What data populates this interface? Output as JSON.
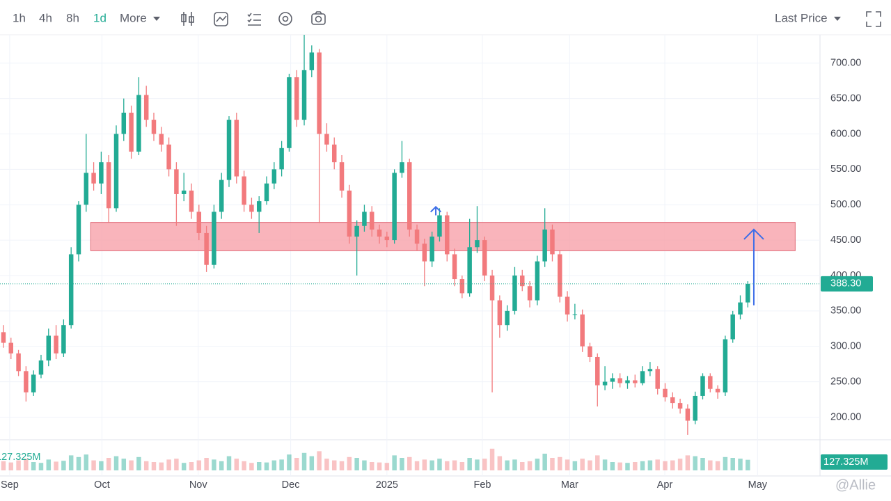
{
  "toolbar": {
    "intervals": [
      "1h",
      "4h",
      "8h",
      "1d"
    ],
    "active": 3,
    "more": "More",
    "price_mode": "Last Price"
  },
  "watermark": "@Allie",
  "chart_data": {
    "type": "candlestick",
    "up_color": "#22ab94",
    "down_color": "#f27a7d",
    "ylim": [
      170,
      740
    ],
    "yticks": [
      {
        "value": 200,
        "label": "200.00"
      },
      {
        "value": 250,
        "label": "250.00"
      },
      {
        "value": 300,
        "label": "300.00"
      },
      {
        "value": 350,
        "label": "350.00"
      },
      {
        "value": 400,
        "label": "400.00"
      },
      {
        "value": 450,
        "label": "450.00"
      },
      {
        "value": 500,
        "label": "500.00"
      },
      {
        "value": 550,
        "label": "550.00"
      },
      {
        "value": 600,
        "label": "600.00"
      },
      {
        "value": 650,
        "label": "650.00"
      },
      {
        "value": 700,
        "label": "700.00"
      }
    ],
    "xlim": [
      -0.46,
      108.6
    ],
    "xticks": [
      {
        "value": 0.83,
        "label": "Sep"
      },
      {
        "value": 13.1,
        "label": "Oct"
      },
      {
        "value": 25.9,
        "label": "Nov"
      },
      {
        "value": 38.2,
        "label": "Dec"
      },
      {
        "value": 51.0,
        "label": "2025"
      },
      {
        "value": 63.7,
        "label": "Feb"
      },
      {
        "value": 75.3,
        "label": "Mar"
      },
      {
        "value": 87.96,
        "label": "Apr"
      },
      {
        "value": 100.3,
        "label": "May"
      }
    ],
    "grid": true,
    "ohlc": [
      [
        320,
        330,
        298,
        305
      ],
      [
        305,
        312,
        282,
        290
      ],
      [
        290,
        295,
        258,
        265
      ],
      [
        265,
        272,
        222,
        235
      ],
      [
        235,
        266,
        230,
        260
      ],
      [
        260,
        288,
        255,
        280
      ],
      [
        280,
        325,
        272,
        315
      ],
      [
        315,
        330,
        282,
        290
      ],
      [
        290,
        338,
        285,
        330
      ],
      [
        330,
        440,
        325,
        430
      ],
      [
        430,
        505,
        420,
        500
      ],
      [
        500,
        600,
        490,
        545
      ],
      [
        545,
        560,
        520,
        530
      ],
      [
        530,
        575,
        515,
        560
      ],
      [
        560,
        570,
        475,
        495
      ],
      [
        495,
        612,
        490,
        600
      ],
      [
        600,
        650,
        590,
        630
      ],
      [
        630,
        640,
        565,
        575
      ],
      [
        575,
        680,
        570,
        655
      ],
      [
        655,
        668,
        610,
        620
      ],
      [
        620,
        630,
        590,
        600
      ],
      [
        600,
        610,
        575,
        585
      ],
      [
        585,
        595,
        540,
        550
      ],
      [
        550,
        560,
        470,
        515
      ],
      [
        515,
        545,
        505,
        520
      ],
      [
        520,
        530,
        480,
        490
      ],
      [
        490,
        500,
        450,
        460
      ],
      [
        460,
        470,
        405,
        415
      ],
      [
        415,
        500,
        410,
        490
      ],
      [
        490,
        545,
        480,
        535
      ],
      [
        535,
        625,
        525,
        620
      ],
      [
        620,
        630,
        530,
        540
      ],
      [
        540,
        548,
        490,
        500
      ],
      [
        500,
        510,
        480,
        490
      ],
      [
        490,
        512,
        460,
        505
      ],
      [
        505,
        540,
        500,
        530
      ],
      [
        530,
        560,
        522,
        550
      ],
      [
        550,
        590,
        540,
        580
      ],
      [
        580,
        685,
        575,
        680
      ],
      [
        680,
        690,
        610,
        620
      ],
      [
        620,
        740,
        612,
        690
      ],
      [
        690,
        725,
        680,
        715
      ],
      [
        715,
        720,
        474,
        600
      ],
      [
        600,
        615,
        575,
        585
      ],
      [
        585,
        595,
        550,
        560
      ],
      [
        560,
        570,
        510,
        520
      ],
      [
        520,
        528,
        445,
        455
      ],
      [
        455,
        478,
        400,
        470
      ],
      [
        470,
        500,
        462,
        490
      ],
      [
        490,
        498,
        455,
        465
      ],
      [
        465,
        472,
        445,
        455
      ],
      [
        455,
        462,
        440,
        450
      ],
      [
        450,
        550,
        445,
        545
      ],
      [
        545,
        590,
        538,
        560
      ],
      [
        560,
        565,
        455,
        465
      ],
      [
        465,
        472,
        435,
        445
      ],
      [
        445,
        452,
        385,
        420
      ],
      [
        420,
        462,
        412,
        455
      ],
      [
        455,
        495,
        448,
        485
      ],
      [
        485,
        490,
        420,
        430
      ],
      [
        430,
        438,
        385,
        395
      ],
      [
        395,
        400,
        368,
        375
      ],
      [
        375,
        480,
        370,
        440
      ],
      [
        440,
        498,
        432,
        450
      ],
      [
        450,
        455,
        392,
        400
      ],
      [
        400,
        408,
        235,
        365
      ],
      [
        365,
        372,
        312,
        330
      ],
      [
        330,
        358,
        322,
        350
      ],
      [
        350,
        412,
        345,
        400
      ],
      [
        400,
        408,
        378,
        385
      ],
      [
        385,
        392,
        355,
        365
      ],
      [
        365,
        428,
        358,
        420
      ],
      [
        420,
        495,
        412,
        465
      ],
      [
        465,
        472,
        420,
        430
      ],
      [
        430,
        436,
        362,
        370
      ],
      [
        370,
        378,
        335,
        345
      ],
      [
        345,
        360,
        338,
        345
      ],
      [
        345,
        352,
        292,
        300
      ],
      [
        300,
        305,
        278,
        285
      ],
      [
        285,
        290,
        215,
        245
      ],
      [
        245,
        272,
        238,
        250
      ],
      [
        250,
        262,
        240,
        255
      ],
      [
        255,
        262,
        242,
        248
      ],
      [
        248,
        258,
        240,
        252
      ],
      [
        252,
        260,
        242,
        248
      ],
      [
        248,
        272,
        245,
        265
      ],
      [
        265,
        278,
        258,
        268
      ],
      [
        268,
        272,
        232,
        240
      ],
      [
        240,
        248,
        222,
        228
      ],
      [
        228,
        235,
        212,
        220
      ],
      [
        220,
        226,
        205,
        212
      ],
      [
        212,
        218,
        175,
        195
      ],
      [
        195,
        236,
        190,
        230
      ],
      [
        230,
        262,
        225,
        258
      ],
      [
        258,
        262,
        235,
        240
      ],
      [
        240,
        245,
        226,
        235
      ],
      [
        235,
        315,
        230,
        310
      ],
      [
        310,
        350,
        305,
        345
      ],
      [
        345,
        372,
        338,
        362
      ],
      [
        362,
        392,
        355,
        388.3
      ]
    ],
    "volume": {
      "values": [
        110,
        95,
        120,
        140,
        100,
        90,
        130,
        105,
        115,
        180,
        160,
        190,
        120,
        110,
        150,
        170,
        140,
        120,
        160,
        110,
        100,
        95,
        130,
        140,
        90,
        100,
        120,
        150,
        130,
        110,
        170,
        140,
        110,
        90,
        100,
        95,
        120,
        130,
        190,
        150,
        210,
        170,
        230,
        140,
        120,
        110,
        160,
        150,
        120,
        100,
        95,
        90,
        180,
        150,
        160,
        110,
        130,
        120,
        140,
        110,
        120,
        100,
        150,
        130,
        140,
        260,
        170,
        120,
        130,
        100,
        110,
        140,
        200,
        150,
        160,
        130,
        110,
        140,
        120,
        180,
        130,
        100,
        95,
        90,
        100,
        110,
        120,
        130,
        110,
        120,
        140,
        180,
        170,
        150,
        120,
        110,
        160,
        150,
        140,
        127.325
      ],
      "last_label": "127.325M"
    },
    "last_price": {
      "value": 388.3,
      "label": "388.30"
    },
    "zone": {
      "x": [
        11.6,
        105.3
      ],
      "y": [
        435,
        475
      ],
      "color": "#f7a1aa"
    },
    "arrows": [
      {
        "x": 99.8,
        "y": [
          358,
          465
        ],
        "color": "#3d6ee8"
      },
      {
        "x": 57.5,
        "y": [
          485,
          497
        ],
        "color": "#3d6ee8"
      }
    ]
  }
}
